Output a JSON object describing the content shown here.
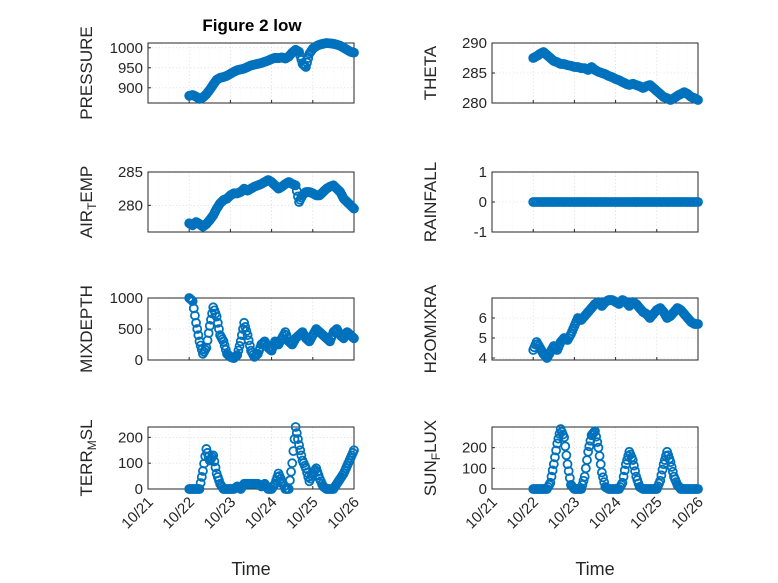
{
  "figure": {
    "title": "Figure 2 low",
    "marker_color": "#0072BD",
    "marker": "circle"
  },
  "chart_data": [
    {
      "type": "scatter",
      "ylabel": "PRESSURE",
      "xlabel": "",
      "xlim": [
        "10/21",
        "10/26"
      ],
      "ylim": [
        862,
        1012
      ],
      "yticks": [
        "900",
        "950",
        "1000"
      ],
      "ytick_values": [
        900,
        950,
        1000
      ],
      "xticklabels": false,
      "grid": true,
      "x": [
        "10/22 00:00",
        "10/22 02:00",
        "10/22 04:00",
        "10/22 06:00",
        "10/22 08:00",
        "10/22 10:00",
        "10/22 12:00",
        "10/22 14:00",
        "10/22 16:00",
        "10/22 18:00",
        "10/22 20:00",
        "10/22 22:00",
        "10/23 00:00",
        "10/23 02:00",
        "10/23 04:00",
        "10/23 06:00",
        "10/23 08:00",
        "10/23 10:00",
        "10/23 12:00",
        "10/23 14:00",
        "10/23 16:00",
        "10/23 18:00",
        "10/23 20:00",
        "10/23 22:00",
        "10/24 00:00",
        "10/24 02:00",
        "10/24 04:00",
        "10/24 06:00",
        "10/24 08:00",
        "10/24 10:00",
        "10/24 12:00",
        "10/24 14:00",
        "10/24 16:00",
        "10/24 18:00",
        "10/24 20:00",
        "10/24 22:00",
        "10/25 00:00",
        "10/25 02:00",
        "10/25 04:00",
        "10/25 06:00",
        "10/25 08:00",
        "10/25 10:00",
        "10/25 12:00",
        "10/25 14:00",
        "10/25 16:00",
        "10/25 18:00",
        "10/25 20:00",
        "10/25 22:00",
        "10/26 00:00"
      ],
      "y": [
        880,
        882,
        878,
        872,
        876,
        884,
        895,
        908,
        920,
        925,
        927,
        930,
        935,
        940,
        944,
        946,
        948,
        952,
        956,
        958,
        960,
        962,
        965,
        968,
        972,
        975,
        974,
        976,
        973,
        978,
        988,
        995,
        990,
        960,
        952,
        985,
        998,
        1004,
        1008,
        1010,
        1012,
        1011,
        1010,
        1008,
        1005,
        1000,
        995,
        990,
        988
      ]
    },
    {
      "type": "scatter",
      "ylabel": "THETA",
      "xlabel": "",
      "xlim": [
        "10/21",
        "10/26"
      ],
      "ylim": [
        280,
        290
      ],
      "yticks": [
        "280",
        "285",
        "290"
      ],
      "ytick_values": [
        280,
        285,
        290
      ],
      "xticklabels": false,
      "grid": true,
      "x": [
        "10/22 00:00",
        "10/22 02:00",
        "10/22 04:00",
        "10/22 06:00",
        "10/22 08:00",
        "10/22 10:00",
        "10/22 12:00",
        "10/22 14:00",
        "10/22 16:00",
        "10/22 18:00",
        "10/22 20:00",
        "10/22 22:00",
        "10/23 00:00",
        "10/23 02:00",
        "10/23 04:00",
        "10/23 06:00",
        "10/23 08:00",
        "10/23 10:00",
        "10/23 12:00",
        "10/23 14:00",
        "10/23 16:00",
        "10/23 18:00",
        "10/23 20:00",
        "10/23 22:00",
        "10/24 00:00",
        "10/24 02:00",
        "10/24 04:00",
        "10/24 06:00",
        "10/24 08:00",
        "10/24 10:00",
        "10/24 12:00",
        "10/24 14:00",
        "10/24 16:00",
        "10/24 18:00",
        "10/24 20:00",
        "10/24 22:00",
        "10/25 00:00",
        "10/25 02:00",
        "10/25 04:00",
        "10/25 06:00",
        "10/25 08:00",
        "10/25 10:00",
        "10/25 12:00",
        "10/25 14:00",
        "10/25 16:00",
        "10/25 18:00",
        "10/25 20:00",
        "10/25 22:00",
        "10/26 00:00"
      ],
      "y": [
        287.5,
        287.8,
        288.2,
        288.5,
        288.0,
        287.5,
        287.0,
        286.8,
        286.5,
        286.5,
        286.3,
        286.2,
        286.0,
        286.0,
        285.8,
        285.8,
        285.5,
        286.0,
        285.5,
        285.2,
        285.0,
        284.8,
        284.5,
        284.3,
        284.0,
        283.8,
        283.5,
        283.2,
        283.0,
        283.2,
        283.0,
        282.8,
        282.5,
        282.8,
        283.0,
        282.5,
        282.0,
        281.5,
        281.0,
        280.8,
        280.5,
        280.8,
        281.2,
        281.5,
        281.8,
        281.5,
        281.0,
        280.8,
        280.5
      ]
    },
    {
      "type": "scatter",
      "ylabel": "AIR_TEMP",
      "xlabel": "",
      "xlim": [
        "10/21",
        "10/26"
      ],
      "ylim": [
        276,
        285
      ],
      "yticks": [
        "280",
        "285"
      ],
      "ytick_values": [
        280,
        285
      ],
      "xticklabels": false,
      "grid": true,
      "x": [
        "10/22 00:00",
        "10/22 02:00",
        "10/22 04:00",
        "10/22 06:00",
        "10/22 08:00",
        "10/22 10:00",
        "10/22 12:00",
        "10/22 14:00",
        "10/22 16:00",
        "10/22 18:00",
        "10/22 20:00",
        "10/22 22:00",
        "10/23 00:00",
        "10/23 02:00",
        "10/23 04:00",
        "10/23 06:00",
        "10/23 08:00",
        "10/23 10:00",
        "10/23 12:00",
        "10/23 14:00",
        "10/23 16:00",
        "10/23 18:00",
        "10/23 20:00",
        "10/23 22:00",
        "10/24 00:00",
        "10/24 02:00",
        "10/24 04:00",
        "10/24 06:00",
        "10/24 08:00",
        "10/24 10:00",
        "10/24 12:00",
        "10/24 14:00",
        "10/24 16:00",
        "10/24 18:00",
        "10/24 20:00",
        "10/24 22:00",
        "10/25 00:00",
        "10/25 02:00",
        "10/25 04:00",
        "10/25 06:00",
        "10/25 08:00",
        "10/25 10:00",
        "10/25 12:00",
        "10/25 14:00",
        "10/25 16:00",
        "10/25 18:00",
        "10/25 20:00",
        "10/25 22:00",
        "10/26 00:00"
      ],
      "y": [
        277.3,
        277.0,
        277.5,
        277.2,
        276.8,
        277.2,
        277.8,
        278.5,
        279.5,
        280.3,
        280.8,
        281.0,
        281.5,
        281.8,
        281.8,
        282.0,
        282.5,
        282.2,
        282.5,
        282.8,
        283.0,
        283.2,
        283.5,
        283.8,
        283.5,
        283.0,
        282.5,
        282.8,
        283.2,
        283.5,
        283.2,
        283.0,
        280.5,
        281.5,
        282.0,
        282.0,
        281.8,
        281.5,
        281.5,
        282.0,
        282.5,
        282.8,
        283.0,
        282.5,
        282.0,
        281.0,
        280.5,
        280.0,
        279.5
      ]
    },
    {
      "type": "scatter",
      "ylabel": "RAINFALL",
      "xlabel": "",
      "xlim": [
        "10/21",
        "10/26"
      ],
      "ylim": [
        -1,
        1
      ],
      "yticks": [
        "-1",
        "0",
        "1"
      ],
      "ytick_values": [
        -1,
        0,
        1
      ],
      "xticklabels": false,
      "grid": true,
      "x": [
        "10/22 00:00",
        "10/22 03:00",
        "10/22 06:00",
        "10/22 09:00",
        "10/22 12:00",
        "10/22 15:00",
        "10/22 18:00",
        "10/22 21:00",
        "10/23 00:00",
        "10/23 03:00",
        "10/23 06:00",
        "10/23 09:00",
        "10/23 12:00",
        "10/23 15:00",
        "10/23 18:00",
        "10/23 21:00",
        "10/24 00:00",
        "10/24 03:00",
        "10/24 06:00",
        "10/24 09:00",
        "10/24 12:00",
        "10/24 15:00",
        "10/24 18:00",
        "10/24 21:00",
        "10/25 00:00",
        "10/25 03:00",
        "10/25 06:00",
        "10/25 09:00",
        "10/25 12:00",
        "10/25 15:00",
        "10/25 18:00",
        "10/25 21:00",
        "10/26 00:00"
      ],
      "y": [
        0,
        0,
        0,
        0,
        0,
        0,
        0,
        0,
        0,
        0,
        0,
        0,
        0,
        0,
        0,
        0,
        0,
        0,
        0,
        0,
        0,
        0,
        0,
        0,
        0,
        0,
        0,
        0,
        0,
        0,
        0,
        0,
        0
      ]
    },
    {
      "type": "scatter",
      "ylabel": "MIXDEPTH",
      "xlabel": "",
      "xlim": [
        "10/21",
        "10/26"
      ],
      "ylim": [
        0,
        1000
      ],
      "yticks": [
        "0",
        "500",
        "1000"
      ],
      "ytick_values": [
        0,
        500,
        1000
      ],
      "xticklabels": false,
      "grid": true,
      "x": [
        "10/22 00:00",
        "10/22 02:00",
        "10/22 04:00",
        "10/22 06:00",
        "10/22 08:00",
        "10/22 10:00",
        "10/22 12:00",
        "10/22 14:00",
        "10/22 16:00",
        "10/22 18:00",
        "10/22 20:00",
        "10/22 22:00",
        "10/23 00:00",
        "10/23 02:00",
        "10/23 04:00",
        "10/23 06:00",
        "10/23 08:00",
        "10/23 10:00",
        "10/23 12:00",
        "10/23 14:00",
        "10/23 16:00",
        "10/23 18:00",
        "10/23 20:00",
        "10/23 22:00",
        "10/24 00:00",
        "10/24 02:00",
        "10/24 04:00",
        "10/24 06:00",
        "10/24 08:00",
        "10/24 10:00",
        "10/24 12:00",
        "10/24 14:00",
        "10/24 16:00",
        "10/24 18:00",
        "10/24 20:00",
        "10/24 22:00",
        "10/25 00:00",
        "10/25 02:00",
        "10/25 04:00",
        "10/25 06:00",
        "10/25 08:00",
        "10/25 10:00",
        "10/25 12:00",
        "10/25 14:00",
        "10/25 16:00",
        "10/25 18:00",
        "10/25 20:00",
        "10/25 22:00",
        "10/26 00:00"
      ],
      "y": [
        1000,
        950,
        600,
        300,
        100,
        200,
        550,
        850,
        700,
        400,
        300,
        100,
        50,
        30,
        80,
        300,
        600,
        400,
        150,
        50,
        100,
        250,
        300,
        200,
        150,
        300,
        250,
        350,
        450,
        300,
        250,
        350,
        400,
        450,
        350,
        300,
        400,
        500,
        450,
        400,
        350,
        300,
        450,
        500,
        400,
        350,
        450,
        400,
        350
      ]
    },
    {
      "type": "scatter",
      "ylabel": "H2OMIXRA",
      "xlabel": "",
      "xlim": [
        "10/21",
        "10/26"
      ],
      "ylim": [
        3.9,
        7.0
      ],
      "yticks": [
        "4",
        "5",
        "6"
      ],
      "ytick_values": [
        4,
        5,
        6
      ],
      "xticklabels": false,
      "grid": true,
      "x": [
        "10/22 00:00",
        "10/22 02:00",
        "10/22 04:00",
        "10/22 06:00",
        "10/22 08:00",
        "10/22 10:00",
        "10/22 12:00",
        "10/22 14:00",
        "10/22 16:00",
        "10/22 18:00",
        "10/22 20:00",
        "10/22 22:00",
        "10/23 00:00",
        "10/23 02:00",
        "10/23 04:00",
        "10/23 06:00",
        "10/23 08:00",
        "10/23 10:00",
        "10/23 12:00",
        "10/23 14:00",
        "10/23 16:00",
        "10/23 18:00",
        "10/23 20:00",
        "10/23 22:00",
        "10/24 00:00",
        "10/24 02:00",
        "10/24 04:00",
        "10/24 06:00",
        "10/24 08:00",
        "10/24 10:00",
        "10/24 12:00",
        "10/24 14:00",
        "10/24 16:00",
        "10/24 18:00",
        "10/24 20:00",
        "10/24 22:00",
        "10/25 00:00",
        "10/25 02:00",
        "10/25 04:00",
        "10/25 06:00",
        "10/25 08:00",
        "10/25 10:00",
        "10/25 12:00",
        "10/25 14:00",
        "10/25 16:00",
        "10/25 18:00",
        "10/25 20:00",
        "10/25 22:00",
        "10/26 00:00"
      ],
      "y": [
        4.4,
        4.8,
        4.5,
        4.2,
        4.0,
        4.3,
        4.6,
        4.4,
        4.8,
        5.0,
        4.9,
        5.2,
        5.6,
        6.0,
        5.9,
        6.1,
        6.3,
        6.5,
        6.7,
        6.8,
        6.6,
        6.8,
        6.9,
        6.9,
        6.8,
        6.7,
        6.9,
        6.8,
        6.6,
        6.8,
        6.7,
        6.5,
        6.3,
        6.2,
        6.0,
        6.2,
        6.4,
        6.5,
        6.3,
        6.0,
        6.1,
        6.3,
        6.5,
        6.4,
        6.2,
        6.0,
        5.8,
        5.7,
        5.7
      ]
    },
    {
      "type": "scatter",
      "ylabel": "TERR_MSL",
      "xlabel": "Time",
      "xlim": [
        "10/21",
        "10/26"
      ],
      "ylim": [
        0,
        240
      ],
      "yticks": [
        "0",
        "100",
        "200"
      ],
      "ytick_values": [
        0,
        100,
        200
      ],
      "xticklabels": true,
      "grid": true,
      "x": [
        "10/22 00:00",
        "10/22 02:00",
        "10/22 04:00",
        "10/22 06:00",
        "10/22 08:00",
        "10/22 10:00",
        "10/22 12:00",
        "10/22 14:00",
        "10/22 16:00",
        "10/22 18:00",
        "10/22 20:00",
        "10/22 22:00",
        "10/23 00:00",
        "10/23 02:00",
        "10/23 04:00",
        "10/23 06:00",
        "10/23 08:00",
        "10/23 10:00",
        "10/23 12:00",
        "10/23 14:00",
        "10/23 16:00",
        "10/23 18:00",
        "10/23 20:00",
        "10/23 22:00",
        "10/24 00:00",
        "10/24 02:00",
        "10/24 04:00",
        "10/24 06:00",
        "10/24 08:00",
        "10/24 10:00",
        "10/24 12:00",
        "10/24 14:00",
        "10/24 16:00",
        "10/24 18:00",
        "10/24 20:00",
        "10/24 22:00",
        "10/25 00:00",
        "10/25 02:00",
        "10/25 04:00",
        "10/25 06:00",
        "10/25 08:00",
        "10/25 10:00",
        "10/25 12:00",
        "10/25 14:00",
        "10/25 16:00",
        "10/25 18:00",
        "10/25 20:00",
        "10/25 22:00",
        "10/26 00:00"
      ],
      "y": [
        0,
        0,
        0,
        0,
        70,
        155,
        110,
        130,
        60,
        20,
        0,
        0,
        0,
        0,
        10,
        0,
        20,
        20,
        20,
        20,
        20,
        10,
        20,
        0,
        0,
        20,
        60,
        30,
        0,
        0,
        100,
        240,
        170,
        110,
        80,
        30,
        60,
        80,
        40,
        10,
        0,
        0,
        0,
        20,
        40,
        60,
        90,
        120,
        150
      ]
    },
    {
      "type": "scatter",
      "ylabel": "SUN_FLUX",
      "xlabel": "Time",
      "xlim": [
        "10/21",
        "10/26"
      ],
      "ylim": [
        0,
        300
      ],
      "yticks": [
        "0",
        "100",
        "200"
      ],
      "ytick_values": [
        0,
        100,
        200
      ],
      "xticklabels": true,
      "grid": true,
      "x": [
        "10/22 00:00",
        "10/22 02:00",
        "10/22 04:00",
        "10/22 06:00",
        "10/22 08:00",
        "10/22 10:00",
        "10/22 12:00",
        "10/22 14:00",
        "10/22 16:00",
        "10/22 18:00",
        "10/22 20:00",
        "10/22 22:00",
        "10/23 00:00",
        "10/23 02:00",
        "10/23 04:00",
        "10/23 06:00",
        "10/23 08:00",
        "10/23 10:00",
        "10/23 12:00",
        "10/23 14:00",
        "10/23 16:00",
        "10/23 18:00",
        "10/23 20:00",
        "10/23 22:00",
        "10/24 00:00",
        "10/24 02:00",
        "10/24 04:00",
        "10/24 06:00",
        "10/24 08:00",
        "10/24 10:00",
        "10/24 12:00",
        "10/24 14:00",
        "10/24 16:00",
        "10/24 18:00",
        "10/24 20:00",
        "10/24 22:00",
        "10/25 00:00",
        "10/25 02:00",
        "10/25 04:00",
        "10/25 06:00",
        "10/25 08:00",
        "10/25 10:00",
        "10/25 12:00",
        "10/25 14:00",
        "10/25 16:00",
        "10/25 18:00",
        "10/25 20:00",
        "10/25 22:00",
        "10/26 00:00"
      ],
      "y": [
        0,
        0,
        0,
        0,
        0,
        30,
        120,
        220,
        290,
        250,
        120,
        20,
        0,
        0,
        0,
        60,
        180,
        260,
        280,
        200,
        80,
        10,
        0,
        0,
        0,
        0,
        30,
        120,
        180,
        140,
        60,
        10,
        0,
        0,
        0,
        0,
        0,
        40,
        120,
        180,
        130,
        60,
        20,
        0,
        0,
        0,
        0,
        0,
        0
      ]
    }
  ],
  "xaxis": {
    "ticklabels": [
      "10/21",
      "10/22",
      "10/23",
      "10/24",
      "10/25",
      "10/26"
    ]
  }
}
